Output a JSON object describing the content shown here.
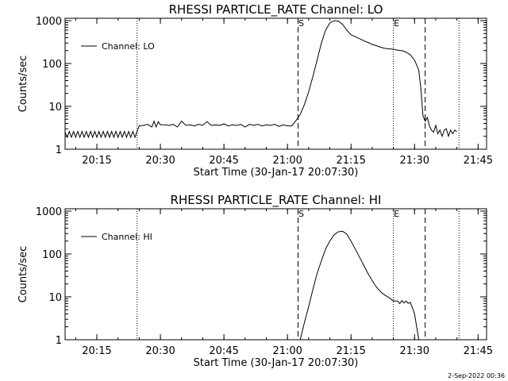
{
  "chart_data": [
    {
      "type": "line",
      "title": "RHESSI PARTICLE_RATE Channel: LO",
      "xlabel": "Start Time (30-Jan-17 20:07:30)",
      "ylabel": "Counts/sec",
      "y_scale": "log",
      "ylim": [
        1,
        1000
      ],
      "xlim": [
        "20:07:30",
        "21:47:00"
      ],
      "x_ticks": [
        "20:15",
        "20:30",
        "20:45",
        "21:00",
        "21:15",
        "21:30",
        "21:45"
      ],
      "y_ticks": [
        "1",
        "10",
        "100",
        "1000"
      ],
      "legend": "top-left",
      "grid": false,
      "series": [
        {
          "name": "Channel: LO",
          "x": [
            "20:07:30",
            "20:08:00",
            "20:08:30",
            "20:09:00",
            "20:09:30",
            "20:10:00",
            "20:10:30",
            "20:11:00",
            "20:11:30",
            "20:12:00",
            "20:12:30",
            "20:13:00",
            "20:13:30",
            "20:14:00",
            "20:14:30",
            "20:15:00",
            "20:15:30",
            "20:16:00",
            "20:16:30",
            "20:17:00",
            "20:17:30",
            "20:18:00",
            "20:18:30",
            "20:19:00",
            "20:19:30",
            "20:20:00",
            "20:20:30",
            "20:21:00",
            "20:21:30",
            "20:22:00",
            "20:22:30",
            "20:23:00",
            "20:23:30",
            "20:24:00",
            "20:24:30",
            "20:25:00",
            "20:26:00",
            "20:27:00",
            "20:28:00",
            "20:28:30",
            "20:29:00",
            "20:29:30",
            "20:30:00",
            "20:31:00",
            "20:32:00",
            "20:33:00",
            "20:34:00",
            "20:35:00",
            "20:36:00",
            "20:37:00",
            "20:38:00",
            "20:39:00",
            "20:40:00",
            "20:41:00",
            "20:42:00",
            "20:43:00",
            "20:44:00",
            "20:45:00",
            "20:46:00",
            "20:47:00",
            "20:48:00",
            "20:49:00",
            "20:50:00",
            "20:51:00",
            "20:52:00",
            "20:53:00",
            "20:54:00",
            "20:55:00",
            "20:56:00",
            "20:57:00",
            "20:58:00",
            "20:59:00",
            "21:00:00",
            "21:01:00",
            "21:02:00",
            "21:03:00",
            "21:04:00",
            "21:05:00",
            "21:06:00",
            "21:07:00",
            "21:08:00",
            "21:09:00",
            "21:10:00",
            "21:11:00",
            "21:12:00",
            "21:13:00",
            "21:14:00",
            "21:15:00",
            "21:16:00",
            "21:17:00",
            "21:18:00",
            "21:19:00",
            "21:20:00",
            "21:21:00",
            "21:22:00",
            "21:23:00",
            "21:24:00",
            "21:25:00",
            "21:26:00",
            "21:27:00",
            "21:28:00",
            "21:29:00",
            "21:30:00",
            "21:31:00",
            "21:31:30",
            "21:32:00",
            "21:32:30",
            "21:33:00",
            "21:33:30",
            "21:34:00",
            "21:34:30",
            "21:35:00",
            "21:35:30",
            "21:36:00",
            "21:36:30",
            "21:37:00",
            "21:37:30",
            "21:38:00",
            "21:38:30",
            "21:39:00",
            "21:39:30",
            "21:40:00"
          ],
          "y": [
            2.5,
            1.9,
            2.6,
            1.9,
            2.6,
            1.9,
            2.6,
            1.9,
            2.6,
            1.9,
            2.6,
            1.9,
            2.6,
            1.9,
            2.6,
            1.9,
            2.6,
            1.9,
            2.6,
            1.9,
            2.6,
            1.9,
            2.6,
            1.9,
            2.6,
            1.9,
            2.6,
            1.9,
            2.6,
            1.9,
            2.6,
            1.9,
            2.6,
            1.9,
            2.6,
            3.5,
            3.6,
            3.8,
            3.3,
            4.5,
            3.3,
            4.4,
            3.7,
            3.7,
            3.6,
            3.8,
            3.3,
            4.5,
            3.6,
            3.7,
            3.5,
            3.8,
            3.6,
            4.4,
            3.6,
            3.7,
            3.6,
            3.9,
            3.5,
            3.7,
            3.6,
            3.8,
            3.3,
            3.8,
            3.6,
            3.8,
            3.5,
            3.7,
            3.6,
            3.8,
            3.4,
            3.7,
            3.5,
            3.5,
            4.6,
            6.5,
            11,
            22,
            50,
            120,
            300,
            600,
            880,
            1000,
            980,
            820,
            600,
            470,
            420,
            380,
            340,
            310,
            280,
            260,
            240,
            225,
            220,
            215,
            205,
            200,
            185,
            160,
            120,
            70,
            25,
            6.0,
            4.5,
            5.5,
            3.5,
            2.8,
            2.5,
            3.6,
            2.3,
            2.8,
            2.0,
            2.8,
            3.0,
            2.0,
            2.8,
            2.3,
            2.8,
            2.6
          ]
        }
      ],
      "annotations": [
        {
          "text": "S",
          "time": "21:02:30"
        },
        {
          "text": "E",
          "time": "21:25:00"
        }
      ],
      "dashed_lines": [
        "21:02:30",
        "21:32:30"
      ],
      "dotted_lines": [
        "20:24:30",
        "21:25:00",
        "21:40:30"
      ]
    },
    {
      "type": "line",
      "title": "RHESSI PARTICLE_RATE Channel: HI",
      "xlabel": "Start Time (30-Jan-17 20:07:30)",
      "ylabel": "Counts/sec",
      "y_scale": "log",
      "ylim": [
        1,
        1000
      ],
      "xlim": [
        "20:07:30",
        "21:47:00"
      ],
      "x_ticks": [
        "20:15",
        "20:30",
        "20:45",
        "21:00",
        "21:15",
        "21:30",
        "21:45"
      ],
      "y_ticks": [
        "1",
        "10",
        "100",
        "1000"
      ],
      "legend": "top-left",
      "grid": false,
      "series": [
        {
          "name": "Channel: HI",
          "x": [
            "21:03:00",
            "21:04:00",
            "21:05:00",
            "21:06:00",
            "21:07:00",
            "21:08:00",
            "21:09:00",
            "21:10:00",
            "21:11:00",
            "21:12:00",
            "21:13:00",
            "21:14:00",
            "21:15:00",
            "21:16:00",
            "21:17:00",
            "21:18:00",
            "21:19:00",
            "21:20:00",
            "21:21:00",
            "21:22:00",
            "21:23:00",
            "21:24:00",
            "21:25:00",
            "21:26:00",
            "21:26:30",
            "21:27:00",
            "21:27:30",
            "21:28:00",
            "21:28:30",
            "21:29:00",
            "21:29:30",
            "21:30:00",
            "21:30:30",
            "21:31:00"
          ],
          "y": [
            1.0,
            2.5,
            6.0,
            15,
            35,
            70,
            130,
            200,
            280,
            330,
            340,
            290,
            200,
            130,
            85,
            55,
            35,
            24,
            17,
            13,
            11,
            9.5,
            8.0,
            8.0,
            7.0,
            8.2,
            7.2,
            8.0,
            7.0,
            7.5,
            5.5,
            4.0,
            2.0,
            1.0
          ]
        }
      ],
      "annotations": [
        {
          "text": "S",
          "time": "21:02:30"
        },
        {
          "text": "E",
          "time": "21:25:00"
        }
      ],
      "dashed_lines": [
        "21:02:30",
        "21:32:30"
      ],
      "dotted_lines": [
        "20:24:30",
        "21:25:00",
        "21:40:30"
      ]
    }
  ],
  "timestamp": "2-Sep-2022 00:36"
}
